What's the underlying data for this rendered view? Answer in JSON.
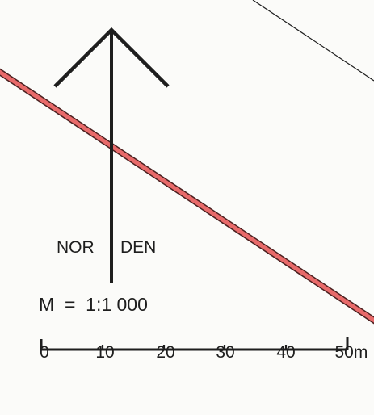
{
  "map": {
    "north_label_left": "NOR",
    "north_label_right": "DEN",
    "scale_text": "M  =  1:1 000",
    "scale_ticks": [
      "0",
      "10",
      "20",
      "30",
      "40",
      "50m"
    ],
    "colors": {
      "background": "#fbfbf9",
      "ink": "#1e1e1e",
      "road_fill": "#e86a6a",
      "road_edge": "#5a2a2a"
    },
    "icons": [
      "north-arrow-icon"
    ]
  }
}
